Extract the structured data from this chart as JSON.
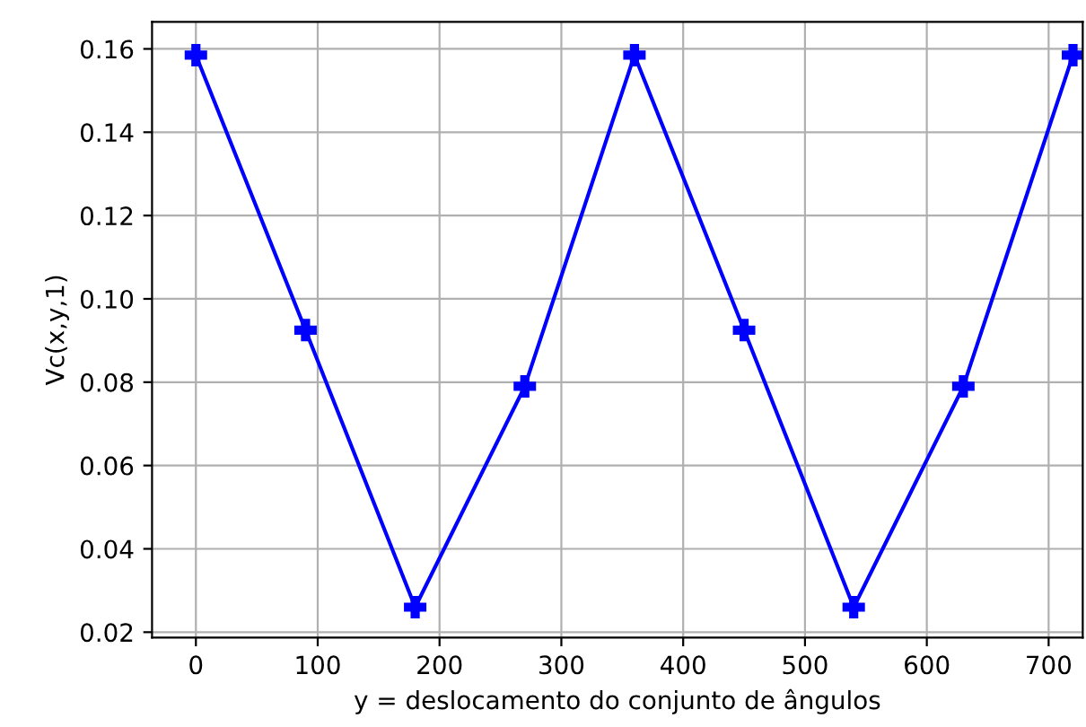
{
  "chart_data": {
    "type": "line",
    "xlabel": "y = deslocamento do conjunto de ângulos",
    "ylabel": "Vc(x,y,1)",
    "x": [
      0,
      90,
      180,
      270,
      360,
      450,
      540,
      630,
      720
    ],
    "series": [
      {
        "color": "#0000ff",
        "values": [
          0.1585,
          0.0925,
          0.026,
          0.079,
          0.1585,
          0.0925,
          0.026,
          0.079,
          0.1585
        ]
      }
    ],
    "xlim": [
      -36,
      728
    ],
    "ylim": [
      0.0187,
      0.1665
    ],
    "xticks": [
      0,
      100,
      200,
      300,
      400,
      500,
      600,
      700
    ],
    "yticks": [
      0.02,
      0.04,
      0.06,
      0.08,
      {
        "value": 0.1,
        "label": "0.10"
      },
      0.12,
      0.14,
      0.16
    ],
    "grid": true,
    "marker": "cross",
    "line_style": "solid"
  }
}
